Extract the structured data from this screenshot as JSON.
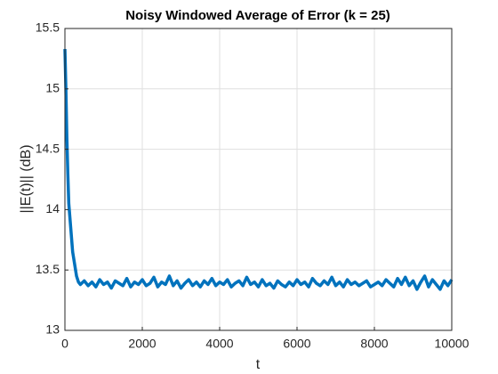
{
  "chart_data": {
    "type": "line",
    "title": "Noisy Windowed Average of Error (k = 25)",
    "xlabel": "t",
    "ylabel": "||E(t)|| (dB)",
    "color": "#0072bd",
    "grid": true,
    "xlim": [
      0,
      10000
    ],
    "xticks": [
      0,
      2000,
      4000,
      6000,
      8000,
      10000
    ],
    "ylim": [
      13,
      15.5
    ],
    "yticks": [
      13,
      13.5,
      14,
      14.5,
      15,
      15.5
    ],
    "x": [
      0,
      25,
      50,
      75,
      100,
      150,
      200,
      250,
      300,
      350,
      400,
      500,
      600,
      700,
      800,
      900,
      1000,
      1100,
      1200,
      1300,
      1400,
      1500,
      1600,
      1700,
      1800,
      1900,
      2000,
      2100,
      2200,
      2300,
      2400,
      2500,
      2600,
      2700,
      2800,
      2900,
      3000,
      3100,
      3200,
      3300,
      3400,
      3500,
      3600,
      3700,
      3800,
      3900,
      4000,
      4100,
      4200,
      4300,
      4400,
      4500,
      4600,
      4700,
      4800,
      4900,
      5000,
      5100,
      5200,
      5300,
      5400,
      5500,
      5600,
      5700,
      5800,
      5900,
      6000,
      6100,
      6200,
      6300,
      6400,
      6500,
      6600,
      6700,
      6800,
      6900,
      7000,
      7100,
      7200,
      7300,
      7400,
      7500,
      7600,
      7700,
      7800,
      7900,
      8000,
      8100,
      8200,
      8300,
      8400,
      8500,
      8600,
      8700,
      8800,
      8900,
      9000,
      9100,
      9200,
      9300,
      9400,
      9500,
      9600,
      9700,
      9800,
      9900,
      10000
    ],
    "values": [
      15.33,
      15.0,
      14.6,
      14.3,
      14.05,
      13.85,
      13.65,
      13.55,
      13.45,
      13.4,
      13.38,
      13.41,
      13.37,
      13.4,
      13.36,
      13.42,
      13.38,
      13.4,
      13.35,
      13.41,
      13.39,
      13.37,
      13.43,
      13.36,
      13.4,
      13.38,
      13.42,
      13.37,
      13.39,
      13.44,
      13.36,
      13.4,
      13.38,
      13.45,
      13.37,
      13.41,
      13.35,
      13.39,
      13.42,
      13.37,
      13.4,
      13.36,
      13.41,
      13.38,
      13.43,
      13.37,
      13.4,
      13.38,
      13.42,
      13.36,
      13.39,
      13.41,
      13.37,
      13.44,
      13.38,
      13.4,
      13.36,
      13.42,
      13.37,
      13.39,
      13.35,
      13.41,
      13.38,
      13.36,
      13.4,
      13.37,
      13.42,
      13.38,
      13.4,
      13.36,
      13.43,
      13.39,
      13.37,
      13.41,
      13.38,
      13.44,
      13.37,
      13.4,
      13.36,
      13.42,
      13.38,
      13.4,
      13.37,
      13.39,
      13.41,
      13.36,
      13.38,
      13.4,
      13.37,
      13.42,
      13.39,
      13.36,
      13.43,
      13.38,
      13.44,
      13.37,
      13.41,
      13.34,
      13.4,
      13.45,
      13.36,
      13.42,
      13.38,
      13.34,
      13.41,
      13.37,
      13.42
    ]
  }
}
